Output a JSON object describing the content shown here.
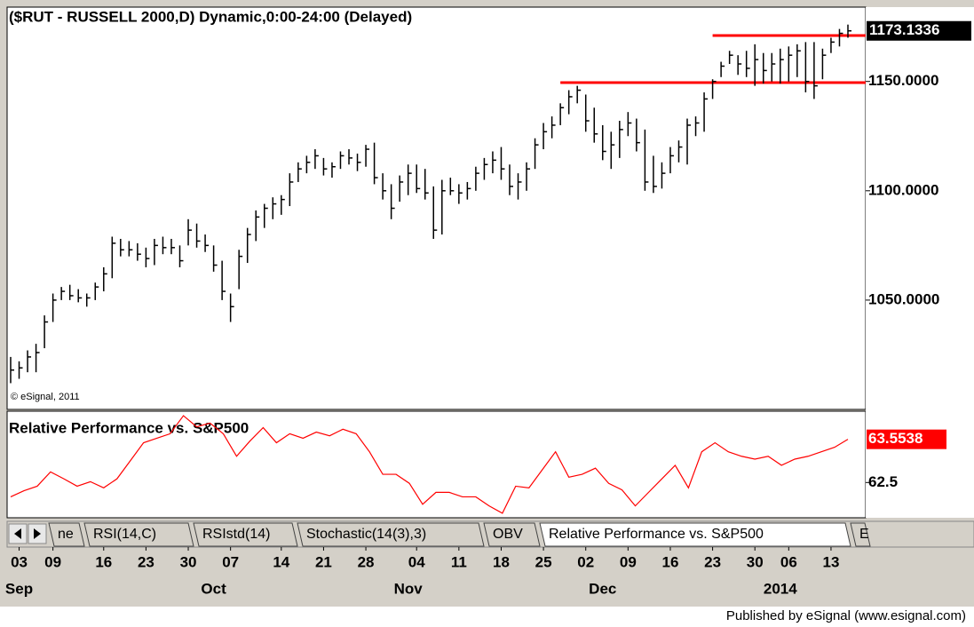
{
  "chart_data": [
    {
      "type": "ohlc",
      "title": "($RUT - RUSSELL 2000,D) Dynamic,0:00-24:00 (Delayed)",
      "color": "#000000",
      "high": [
        1024,
        1022,
        1027,
        1030,
        1043,
        1053,
        1056,
        1057,
        1055,
        1053,
        1058,
        1065,
        1079,
        1078,
        1077,
        1076,
        1074,
        1078,
        1079,
        1078,
        1075,
        1087,
        1085,
        1080,
        1075,
        1068,
        1053,
        1073,
        1083,
        1091,
        1094,
        1097,
        1098,
        1108,
        1113,
        1116,
        1119,
        1115,
        1113,
        1118,
        1119,
        1117,
        1121,
        1122,
        1108,
        1103,
        1107,
        1112,
        1112,
        1110,
        1102,
        1105,
        1106,
        1103,
        1104,
        1111,
        1115,
        1118,
        1120,
        1112,
        1108,
        1113,
        1124,
        1131,
        1134,
        1140,
        1146,
        1148,
        1144,
        1138,
        1130,
        1127,
        1132,
        1136,
        1133,
        1128,
        1116,
        1113,
        1120,
        1123,
        1133,
        1134,
        1145,
        1151,
        1159,
        1164,
        1162,
        1164,
        1167,
        1163,
        1163,
        1165,
        1166,
        1167,
        1168,
        1168,
        1165,
        1170,
        1174,
        1176
      ],
      "low": [
        1012,
        1014,
        1017,
        1017,
        1028,
        1040,
        1050,
        1050,
        1049,
        1047,
        1050,
        1054,
        1060,
        1070,
        1070,
        1068,
        1065,
        1066,
        1071,
        1071,
        1065,
        1075,
        1074,
        1072,
        1063,
        1050,
        1040,
        1055,
        1067,
        1077,
        1083,
        1087,
        1089,
        1093,
        1104,
        1108,
        1110,
        1107,
        1106,
        1110,
        1112,
        1109,
        1111,
        1103,
        1096,
        1087,
        1095,
        1098,
        1099,
        1096,
        1078,
        1080,
        1098,
        1094,
        1096,
        1100,
        1105,
        1108,
        1105,
        1098,
        1096,
        1100,
        1110,
        1119,
        1124,
        1130,
        1135,
        1140,
        1127,
        1122,
        1114,
        1110,
        1115,
        1125,
        1118,
        1100,
        1099,
        1101,
        1108,
        1113,
        1112,
        1125,
        1127,
        1142,
        1152,
        1158,
        1153,
        1152,
        1148,
        1149,
        1150,
        1149,
        1150,
        1152,
        1145,
        1142,
        1151,
        1163,
        1166,
        1170
      ],
      "close": [
        1018,
        1019,
        1024,
        1026,
        1040,
        1050,
        1054,
        1052,
        1051,
        1051,
        1056,
        1062,
        1076,
        1073,
        1073,
        1071,
        1069,
        1075,
        1074,
        1074,
        1068,
        1082,
        1077,
        1075,
        1066,
        1054,
        1047,
        1070,
        1080,
        1088,
        1092,
        1094,
        1096,
        1104,
        1110,
        1113,
        1116,
        1110,
        1111,
        1116,
        1115,
        1113,
        1119,
        1106,
        1100,
        1092,
        1104,
        1108,
        1101,
        1099,
        1082,
        1100,
        1100,
        1099,
        1101,
        1108,
        1112,
        1114,
        1110,
        1102,
        1104,
        1110,
        1121,
        1127,
        1130,
        1138,
        1143,
        1146,
        1132,
        1126,
        1118,
        1121,
        1128,
        1131,
        1122,
        1104,
        1102,
        1108,
        1116,
        1120,
        1130,
        1131,
        1142,
        1150,
        1157,
        1162,
        1158,
        1156,
        1160,
        1155,
        1158,
        1160,
        1162,
        1164,
        1150,
        1148,
        1162,
        1168,
        1172,
        1173.1336
      ],
      "ylim": [
        1000,
        1184
      ],
      "yticks": [
        {
          "value": 1050,
          "label": "1050.0000"
        },
        {
          "value": 1100,
          "label": "1100.0000"
        },
        {
          "value": 1150,
          "label": "1150.0000"
        }
      ],
      "hlines": [
        {
          "value": 1149.5,
          "start": 65,
          "color": "#ff0000"
        },
        {
          "value": 1171,
          "start": 83,
          "color": "#ff0000"
        }
      ],
      "xticks": [
        {
          "value": 1,
          "label": "03"
        },
        {
          "value": 5,
          "label": "09"
        },
        {
          "value": 11,
          "label": "16"
        },
        {
          "value": 16,
          "label": "23"
        },
        {
          "value": 21,
          "label": "30"
        },
        {
          "value": 26,
          "label": "07"
        },
        {
          "value": 32,
          "label": "14"
        },
        {
          "value": 37,
          "label": "21"
        },
        {
          "value": 42,
          "label": "28"
        },
        {
          "value": 48,
          "label": "04"
        },
        {
          "value": 53,
          "label": "11"
        },
        {
          "value": 58,
          "label": "18"
        },
        {
          "value": 63,
          "label": "25"
        },
        {
          "value": 68,
          "label": "02"
        },
        {
          "value": 73,
          "label": "09"
        },
        {
          "value": 78,
          "label": "16"
        },
        {
          "value": 83,
          "label": "23"
        },
        {
          "value": 88,
          "label": "30"
        },
        {
          "value": 92,
          "label": "06"
        },
        {
          "value": 97,
          "label": "13"
        }
      ],
      "month_ticks": [
        {
          "value": 1,
          "label": "Sep"
        },
        {
          "value": 24,
          "label": "Oct"
        },
        {
          "value": 47,
          "label": "Nov"
        },
        {
          "value": 70,
          "label": "Dec"
        },
        {
          "value": 91,
          "label": "2014"
        }
      ],
      "annotation": "© eSignal, 2011"
    },
    {
      "type": "line",
      "title": "Relative Performance vs. S&P500",
      "color": "#ff0000",
      "values": [
        62.15,
        62.3,
        62.41,
        62.76,
        62.59,
        62.41,
        62.52,
        62.37,
        62.59,
        63.03,
        63.47,
        63.58,
        63.69,
        64.13,
        63.86,
        63.95,
        63.69,
        63.14,
        63.51,
        63.84,
        63.47,
        63.69,
        63.58,
        63.73,
        63.64,
        63.8,
        63.69,
        63.25,
        62.7,
        62.7,
        62.48,
        61.97,
        62.26,
        62.26,
        62.15,
        62.15,
        61.93,
        61.75,
        62.41,
        62.37,
        62.81,
        63.25,
        62.63,
        62.7,
        62.85,
        62.48,
        62.32,
        61.93,
        62.26,
        62.59,
        62.92,
        62.37,
        63.25,
        63.47,
        63.25,
        63.14,
        63.07,
        63.14,
        62.92,
        63.07,
        63.14,
        63.25,
        63.36,
        63.5538
      ],
      "ylim": [
        61.64,
        64.24
      ],
      "yticks": [
        62.5
      ]
    }
  ],
  "tabs": [
    "ne",
    "RSI(14,C)",
    "RSIstd(14)",
    "Stochastic(14(3),3)",
    "OBV",
    "Relative Performance vs. S&P500",
    "E"
  ],
  "active_tab": 5,
  "footer": "Published by eSignal (www.esignal.com)"
}
